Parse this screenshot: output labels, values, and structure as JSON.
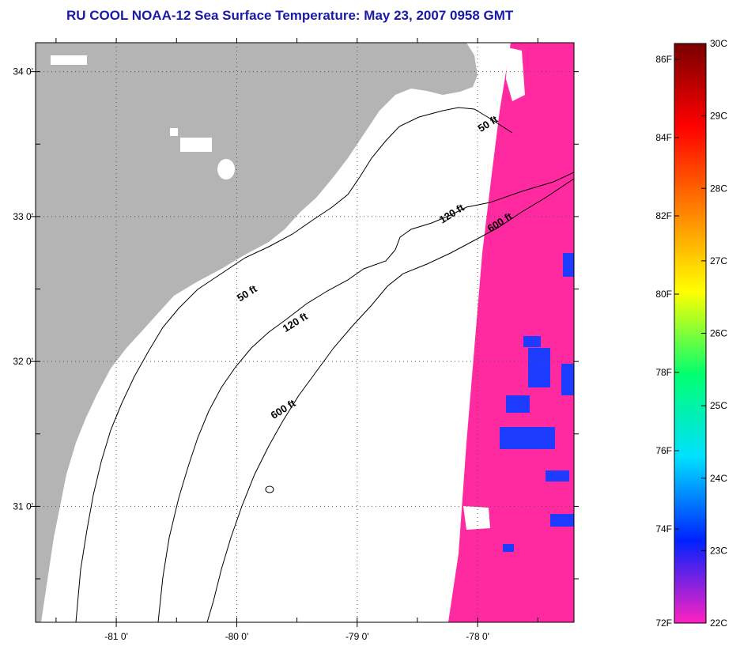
{
  "title": "RU COOL  NOAA-12  Sea Surface Temperature:  May 23, 2007 0958 GMT",
  "map": {
    "lon_range": [
      -81.67,
      -77.2
    ],
    "lat_range": [
      30.2,
      34.2
    ],
    "lon_ticks": [
      {
        "value": -81,
        "label": "-81 0'"
      },
      {
        "value": -80,
        "label": "-80 0'"
      },
      {
        "value": -79,
        "label": "-79 0'"
      },
      {
        "value": -78,
        "label": "-78 0'"
      }
    ],
    "lat_ticks": [
      {
        "value": 34,
        "label": "34 0'"
      },
      {
        "value": 33,
        "label": "33 0'"
      },
      {
        "value": 32,
        "label": "32 0'"
      },
      {
        "value": 31,
        "label": "31 0'"
      }
    ],
    "contour_labels": [
      {
        "text": "50 ft",
        "lon": -77.9,
        "lat": 33.62
      },
      {
        "text": "120 ft",
        "lon": -78.2,
        "lat": 33.0
      },
      {
        "text": "600 ft",
        "lon": -77.8,
        "lat": 32.94
      },
      {
        "text": "50 ft",
        "lon": -79.9,
        "lat": 32.45
      },
      {
        "text": "120 ft",
        "lon": -79.5,
        "lat": 32.25
      },
      {
        "text": "600 ft",
        "lon": -79.6,
        "lat": 31.65
      }
    ],
    "colors": {
      "land": "#b4b4b4",
      "water_sst": "#ff2aa0",
      "cool_patch": "#1e3cff",
      "cloud": "#ffffff"
    }
  },
  "colorbar": {
    "fahrenheit_labels": [
      "86F",
      "84F",
      "82F",
      "80F",
      "78F",
      "76F",
      "74F",
      "72F"
    ],
    "celsius_labels": [
      "30C",
      "29C",
      "28C",
      "27C",
      "26C",
      "25C",
      "24C",
      "23C",
      "22C"
    ],
    "stops": [
      "#ff22c0",
      "#0022ff",
      "#00e0ff",
      "#00ff70",
      "#ffff00",
      "#ff8000",
      "#ff0000",
      "#7a0000"
    ]
  }
}
